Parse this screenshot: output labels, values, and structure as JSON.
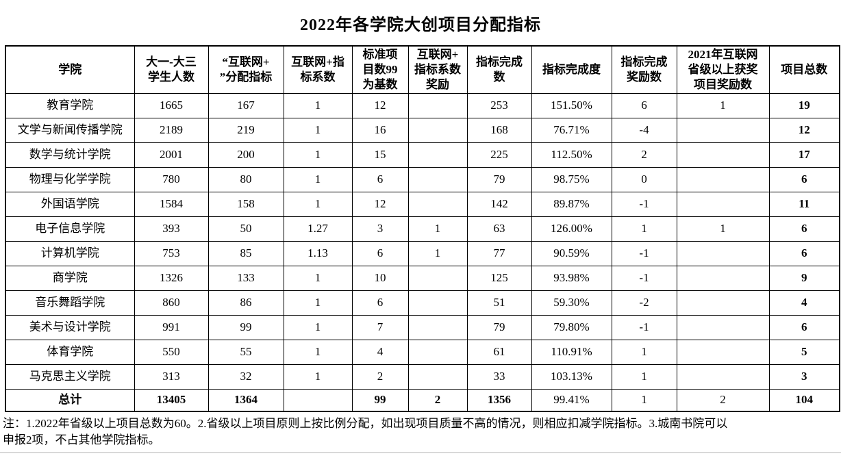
{
  "title": "2022年各学院大创项目分配指标",
  "table": {
    "headers": [
      "学院",
      "大一-大三\n学生人数",
      "“互联网+\n”分配指标",
      "互联网+指\n标系数",
      "标准项\n目数99\n为基数",
      "互联网+\n指标系数\n奖励",
      "指标完成\n数",
      "指标完成度",
      "指标完成\n奖励数",
      "2021年互联网\n省级以上获奖\n项目奖励数",
      "项目总数"
    ],
    "rows": [
      [
        "教育学院",
        "1665",
        "167",
        "1",
        "12",
        "",
        "253",
        "151.50%",
        "6",
        "1",
        "19"
      ],
      [
        "文学与新闻传播学院",
        "2189",
        "219",
        "1",
        "16",
        "",
        "168",
        "76.71%",
        "-4",
        "",
        "12"
      ],
      [
        "数学与统计学院",
        "2001",
        "200",
        "1",
        "15",
        "",
        "225",
        "112.50%",
        "2",
        "",
        "17"
      ],
      [
        "物理与化学学院",
        "780",
        "80",
        "1",
        "6",
        "",
        "79",
        "98.75%",
        "0",
        "",
        "6"
      ],
      [
        "外国语学院",
        "1584",
        "158",
        "1",
        "12",
        "",
        "142",
        "89.87%",
        "-1",
        "",
        "11"
      ],
      [
        "电子信息学院",
        "393",
        "50",
        "1.27",
        "3",
        "1",
        "63",
        "126.00%",
        "1",
        "1",
        "6"
      ],
      [
        "计算机学院",
        "753",
        "85",
        "1.13",
        "6",
        "1",
        "77",
        "90.59%",
        "-1",
        "",
        "6"
      ],
      [
        "商学院",
        "1326",
        "133",
        "1",
        "10",
        "",
        "125",
        "93.98%",
        "-1",
        "",
        "9"
      ],
      [
        "音乐舞蹈学院",
        "860",
        "86",
        "1",
        "6",
        "",
        "51",
        "59.30%",
        "-2",
        "",
        "4"
      ],
      [
        "美术与设计学院",
        "991",
        "99",
        "1",
        "7",
        "",
        "79",
        "79.80%",
        "-1",
        "",
        "6"
      ],
      [
        "体育学院",
        "550",
        "55",
        "1",
        "4",
        "",
        "61",
        "110.91%",
        "1",
        "",
        "5"
      ],
      [
        "马克思主义学院",
        "313",
        "32",
        "1",
        "2",
        "",
        "33",
        "103.13%",
        "1",
        "",
        "3"
      ]
    ],
    "total_row": [
      "总计",
      "13405",
      "1364",
      "",
      "99",
      "2",
      "1356",
      "99.41%",
      "1",
      "2",
      "104"
    ]
  },
  "note": {
    "line1": "注：1.2022年省级以上项目总数为60。2.省级以上项目原则上按比例分配，如出现项目质量不高的情况，则相应扣减学院指标。3.城南书院可以",
    "line2": "申报2项，不占其他学院指标。"
  }
}
